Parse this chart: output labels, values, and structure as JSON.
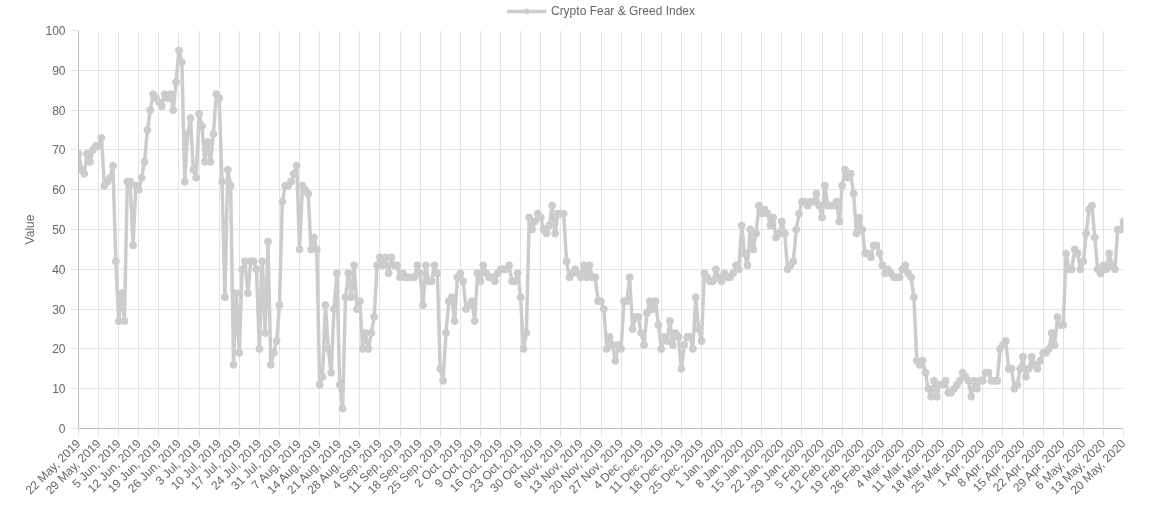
{
  "chart_data": {
    "type": "line",
    "ylabel": "Value",
    "legend": "top",
    "grid": true,
    "marker": "circle",
    "line_style": "solid",
    "xlim": [
      "2019-05-22",
      "2020-05-20"
    ],
    "ylim": [
      0,
      100
    ],
    "yticks": [
      0,
      10,
      20,
      30,
      40,
      50,
      60,
      70,
      80,
      90,
      100
    ],
    "xticks": [
      {
        "value": "2019-05-22",
        "label": "22 May, 2019"
      },
      {
        "value": "2019-05-29",
        "label": "29 May, 2019"
      },
      {
        "value": "2019-06-05",
        "label": "5 Jun, 2019"
      },
      {
        "value": "2019-06-12",
        "label": "12 Jun, 2019"
      },
      {
        "value": "2019-06-19",
        "label": "19 Jun, 2019"
      },
      {
        "value": "2019-06-26",
        "label": "26 Jun, 2019"
      },
      {
        "value": "2019-07-03",
        "label": "3 Jul, 2019"
      },
      {
        "value": "2019-07-10",
        "label": "10 Jul, 2019"
      },
      {
        "value": "2019-07-17",
        "label": "17 Jul, 2019"
      },
      {
        "value": "2019-07-24",
        "label": "24 Jul, 2019"
      },
      {
        "value": "2019-07-31",
        "label": "31 Jul, 2019"
      },
      {
        "value": "2019-08-07",
        "label": "7 Aug, 2019"
      },
      {
        "value": "2019-08-14",
        "label": "14 Aug, 2019"
      },
      {
        "value": "2019-08-21",
        "label": "21 Aug, 2019"
      },
      {
        "value": "2019-08-28",
        "label": "28 Aug, 2019"
      },
      {
        "value": "2019-09-04",
        "label": "4 Sep, 2019"
      },
      {
        "value": "2019-09-11",
        "label": "11 Sep, 2019"
      },
      {
        "value": "2019-09-18",
        "label": "18 Sep, 2019"
      },
      {
        "value": "2019-09-25",
        "label": "25 Sep, 2019"
      },
      {
        "value": "2019-10-02",
        "label": "2 Oct, 2019"
      },
      {
        "value": "2019-10-09",
        "label": "9 Oct, 2019"
      },
      {
        "value": "2019-10-16",
        "label": "16 Oct, 2019"
      },
      {
        "value": "2019-10-23",
        "label": "23 Oct, 2019"
      },
      {
        "value": "2019-10-30",
        "label": "30 Oct, 2019"
      },
      {
        "value": "2019-11-06",
        "label": "6 Nov, 2019"
      },
      {
        "value": "2019-11-13",
        "label": "13 Nov, 2019"
      },
      {
        "value": "2019-11-20",
        "label": "20 Nov, 2019"
      },
      {
        "value": "2019-11-27",
        "label": "27 Nov, 2019"
      },
      {
        "value": "2019-12-04",
        "label": "4 Dec, 2019"
      },
      {
        "value": "2019-12-11",
        "label": "11 Dec, 2019"
      },
      {
        "value": "2019-12-18",
        "label": "18 Dec, 2019"
      },
      {
        "value": "2019-12-25",
        "label": "25 Dec, 2019"
      },
      {
        "value": "2020-01-01",
        "label": "1 Jan, 2020"
      },
      {
        "value": "2020-01-08",
        "label": "8 Jan, 2020"
      },
      {
        "value": "2020-01-15",
        "label": "15 Jan, 2020"
      },
      {
        "value": "2020-01-22",
        "label": "22 Jan, 2020"
      },
      {
        "value": "2020-01-29",
        "label": "29 Jan, 2020"
      },
      {
        "value": "2020-02-05",
        "label": "5 Feb, 2020"
      },
      {
        "value": "2020-02-12",
        "label": "12 Feb, 2020"
      },
      {
        "value": "2020-02-19",
        "label": "19 Feb, 2020"
      },
      {
        "value": "2020-02-26",
        "label": "26 Feb, 2020"
      },
      {
        "value": "2020-03-04",
        "label": "4 Mar, 2020"
      },
      {
        "value": "2020-03-11",
        "label": "11 Mar, 2020"
      },
      {
        "value": "2020-03-18",
        "label": "18 Mar, 2020"
      },
      {
        "value": "2020-03-25",
        "label": "25 Mar, 2020"
      },
      {
        "value": "2020-04-01",
        "label": "1 Apr, 2020"
      },
      {
        "value": "2020-04-08",
        "label": "8 Apr, 2020"
      },
      {
        "value": "2020-04-15",
        "label": "15 Apr, 2020"
      },
      {
        "value": "2020-04-22",
        "label": "22 Apr, 2020"
      },
      {
        "value": "2020-04-29",
        "label": "29 Apr, 2020"
      },
      {
        "value": "2020-05-06",
        "label": "6 May, 2020"
      },
      {
        "value": "2020-05-13",
        "label": "13 May, 2020"
      },
      {
        "value": "2020-05-20",
        "label": "20 May, 2020"
      }
    ],
    "x": [
      "2019-05-22",
      "2019-05-23",
      "2019-05-24",
      "2019-05-25",
      "2019-05-26",
      "2019-05-27",
      "2019-05-28",
      "2019-05-29",
      "2019-05-30",
      "2019-05-31",
      "2019-06-01",
      "2019-06-02",
      "2019-06-03",
      "2019-06-04",
      "2019-06-05",
      "2019-06-06",
      "2019-06-07",
      "2019-06-08",
      "2019-06-09",
      "2019-06-10",
      "2019-06-11",
      "2019-06-12",
      "2019-06-13",
      "2019-06-14",
      "2019-06-15",
      "2019-06-16",
      "2019-06-17",
      "2019-06-18",
      "2019-06-19",
      "2019-06-20",
      "2019-06-21",
      "2019-06-22",
      "2019-06-23",
      "2019-06-24",
      "2019-06-25",
      "2019-06-26",
      "2019-06-27",
      "2019-06-28",
      "2019-06-29",
      "2019-06-30",
      "2019-07-01",
      "2019-07-02",
      "2019-07-03",
      "2019-07-04",
      "2019-07-05",
      "2019-07-06",
      "2019-07-07",
      "2019-07-08",
      "2019-07-09",
      "2019-07-10",
      "2019-07-11",
      "2019-07-12",
      "2019-07-13",
      "2019-07-14",
      "2019-07-15",
      "2019-07-16",
      "2019-07-17",
      "2019-07-18",
      "2019-07-19",
      "2019-07-20",
      "2019-07-21",
      "2019-07-22",
      "2019-07-23",
      "2019-07-24",
      "2019-07-25",
      "2019-07-26",
      "2019-07-27",
      "2019-07-28",
      "2019-07-29",
      "2019-07-30",
      "2019-07-31",
      "2019-08-01",
      "2019-08-02",
      "2019-08-03",
      "2019-08-04",
      "2019-08-05",
      "2019-08-06",
      "2019-08-07",
      "2019-08-08",
      "2019-08-09",
      "2019-08-10",
      "2019-08-11",
      "2019-08-12",
      "2019-08-13",
      "2019-08-14",
      "2019-08-15",
      "2019-08-16",
      "2019-08-17",
      "2019-08-18",
      "2019-08-19",
      "2019-08-20",
      "2019-08-21",
      "2019-08-22",
      "2019-08-23",
      "2019-08-24",
      "2019-08-25",
      "2019-08-26",
      "2019-08-27",
      "2019-08-28",
      "2019-08-29",
      "2019-08-30",
      "2019-08-31",
      "2019-09-01",
      "2019-09-02",
      "2019-09-03",
      "2019-09-04",
      "2019-09-05",
      "2019-09-06",
      "2019-09-07",
      "2019-09-08",
      "2019-09-09",
      "2019-09-10",
      "2019-09-11",
      "2019-09-12",
      "2019-09-13",
      "2019-09-14",
      "2019-09-15",
      "2019-09-16",
      "2019-09-17",
      "2019-09-18",
      "2019-09-19",
      "2019-09-20",
      "2019-09-21",
      "2019-09-22",
      "2019-09-23",
      "2019-09-24",
      "2019-09-25",
      "2019-09-26",
      "2019-09-27",
      "2019-09-28",
      "2019-09-29",
      "2019-09-30",
      "2019-10-01",
      "2019-10-02",
      "2019-10-03",
      "2019-10-04",
      "2019-10-05",
      "2019-10-06",
      "2019-10-07",
      "2019-10-08",
      "2019-10-09",
      "2019-10-10",
      "2019-10-11",
      "2019-10-12",
      "2019-10-13",
      "2019-10-14",
      "2019-10-15",
      "2019-10-16",
      "2019-10-17",
      "2019-10-18",
      "2019-10-19",
      "2019-10-20",
      "2019-10-21",
      "2019-10-22",
      "2019-10-23",
      "2019-10-24",
      "2019-10-25",
      "2019-10-26",
      "2019-10-27",
      "2019-10-28",
      "2019-10-29",
      "2019-10-30",
      "2019-10-31",
      "2019-11-01",
      "2019-11-02",
      "2019-11-03",
      "2019-11-04",
      "2019-11-05",
      "2019-11-06",
      "2019-11-07",
      "2019-11-08",
      "2019-11-09",
      "2019-11-10",
      "2019-11-11",
      "2019-11-12",
      "2019-11-13",
      "2019-11-14",
      "2019-11-15",
      "2019-11-16",
      "2019-11-17",
      "2019-11-18",
      "2019-11-19",
      "2019-11-20",
      "2019-11-21",
      "2019-11-22",
      "2019-11-23",
      "2019-11-24",
      "2019-11-25",
      "2019-11-26",
      "2019-11-27",
      "2019-11-28",
      "2019-11-29",
      "2019-11-30",
      "2019-12-01",
      "2019-12-02",
      "2019-12-03",
      "2019-12-04",
      "2019-12-05",
      "2019-12-06",
      "2019-12-07",
      "2019-12-08",
      "2019-12-09",
      "2019-12-10",
      "2019-12-11",
      "2019-12-12",
      "2019-12-13",
      "2019-12-14",
      "2019-12-15",
      "2019-12-16",
      "2019-12-17",
      "2019-12-18",
      "2019-12-19",
      "2019-12-20",
      "2019-12-21",
      "2019-12-22",
      "2019-12-23",
      "2019-12-24",
      "2019-12-25",
      "2019-12-26",
      "2019-12-27",
      "2019-12-28",
      "2019-12-29",
      "2019-12-30",
      "2019-12-31",
      "2020-01-01",
      "2020-01-02",
      "2020-01-03",
      "2020-01-04",
      "2020-01-05",
      "2020-01-06",
      "2020-01-07",
      "2020-01-08",
      "2020-01-09",
      "2020-01-10",
      "2020-01-11",
      "2020-01-12",
      "2020-01-13",
      "2020-01-14",
      "2020-01-15",
      "2020-01-16",
      "2020-01-17",
      "2020-01-18",
      "2020-01-19",
      "2020-01-20",
      "2020-01-21",
      "2020-01-22",
      "2020-01-23",
      "2020-01-24",
      "2020-01-25",
      "2020-01-26",
      "2020-01-27",
      "2020-01-28",
      "2020-01-29",
      "2020-01-30",
      "2020-01-31",
      "2020-02-01",
      "2020-02-02",
      "2020-02-03",
      "2020-02-04",
      "2020-02-05",
      "2020-02-06",
      "2020-02-07",
      "2020-02-08",
      "2020-02-09",
      "2020-02-10",
      "2020-02-11",
      "2020-02-12",
      "2020-02-13",
      "2020-02-14",
      "2020-02-15",
      "2020-02-16",
      "2020-02-17",
      "2020-02-18",
      "2020-02-19",
      "2020-02-20",
      "2020-02-21",
      "2020-02-22",
      "2020-02-23",
      "2020-02-24",
      "2020-02-25",
      "2020-02-26",
      "2020-02-27",
      "2020-02-28",
      "2020-02-29",
      "2020-03-01",
      "2020-03-02",
      "2020-03-03",
      "2020-03-04",
      "2020-03-05",
      "2020-03-06",
      "2020-03-07",
      "2020-03-08",
      "2020-03-09",
      "2020-03-10",
      "2020-03-11",
      "2020-03-12",
      "2020-03-13",
      "2020-03-14",
      "2020-03-15",
      "2020-03-16",
      "2020-03-17",
      "2020-03-18",
      "2020-03-19",
      "2020-03-20",
      "2020-03-21",
      "2020-03-22",
      "2020-03-23",
      "2020-03-24",
      "2020-03-25",
      "2020-03-26",
      "2020-03-27",
      "2020-03-28",
      "2020-03-29",
      "2020-03-30",
      "2020-03-31",
      "2020-04-01",
      "2020-04-02",
      "2020-04-03",
      "2020-04-04",
      "2020-04-05",
      "2020-04-06",
      "2020-04-07",
      "2020-04-08",
      "2020-04-09",
      "2020-04-10",
      "2020-04-11",
      "2020-04-12",
      "2020-04-13",
      "2020-04-14",
      "2020-04-15",
      "2020-04-16",
      "2020-04-17",
      "2020-04-18",
      "2020-04-19",
      "2020-04-20",
      "2020-04-21",
      "2020-04-22",
      "2020-04-23",
      "2020-04-24",
      "2020-04-25",
      "2020-04-26",
      "2020-04-27",
      "2020-04-28",
      "2020-04-29",
      "2020-04-30",
      "2020-05-01",
      "2020-05-02",
      "2020-05-03",
      "2020-05-04",
      "2020-05-05",
      "2020-05-06",
      "2020-05-07",
      "2020-05-08",
      "2020-05-09",
      "2020-05-10",
      "2020-05-11",
      "2020-05-12",
      "2020-05-13",
      "2020-05-14",
      "2020-05-15",
      "2020-05-16",
      "2020-05-17",
      "2020-05-18",
      "2020-05-19",
      "2020-05-20"
    ],
    "series": [
      {
        "name": "Crypto Fear & Greed Index",
        "color": "#cccccc",
        "values": [
          69,
          65,
          64,
          69,
          67,
          70,
          71,
          71,
          73,
          61,
          62,
          63,
          66,
          42,
          27,
          34,
          27,
          62,
          62,
          46,
          61,
          60,
          63,
          67,
          75,
          80,
          84,
          83,
          82,
          81,
          84,
          83,
          84,
          80,
          87,
          95,
          92,
          62,
          74,
          78,
          65,
          63,
          79,
          76,
          67,
          72,
          67,
          74,
          84,
          83,
          62,
          33,
          65,
          61,
          16,
          34,
          19,
          40,
          42,
          34,
          42,
          42,
          40,
          20,
          42,
          24,
          47,
          16,
          19,
          22,
          31,
          57,
          61,
          61,
          62,
          64,
          66,
          45,
          61,
          60,
          59,
          45,
          48,
          45,
          11,
          13,
          31,
          20,
          14,
          30,
          39,
          11,
          5,
          33,
          39,
          33,
          41,
          30,
          32,
          20,
          24,
          20,
          24,
          28,
          41,
          43,
          41,
          43,
          39,
          43,
          41,
          41,
          38,
          39,
          38,
          38,
          38,
          38,
          41,
          39,
          31,
          41,
          37,
          37,
          41,
          39,
          15,
          12,
          24,
          32,
          33,
          27,
          38,
          39,
          37,
          30,
          31,
          32,
          27,
          39,
          37,
          41,
          39,
          38,
          38,
          37,
          39,
          40,
          40,
          40,
          41,
          37,
          37,
          39,
          33,
          20,
          24,
          53,
          50,
          52,
          54,
          53,
          50,
          49,
          51,
          56,
          49,
          54,
          54,
          54,
          42,
          38,
          39,
          40,
          39,
          38,
          41,
          38,
          41,
          38,
          38,
          32,
          32,
          30,
          20,
          23,
          21,
          17,
          21,
          20,
          32,
          32,
          38,
          25,
          28,
          28,
          24,
          21,
          29,
          32,
          30,
          32,
          26,
          20,
          23,
          22,
          27,
          21,
          24,
          23,
          15,
          21,
          23,
          23,
          20,
          33,
          25,
          22,
          39,
          38,
          37,
          37,
          40,
          38,
          37,
          39,
          38,
          38,
          39,
          41,
          40,
          51,
          44,
          41,
          50,
          45,
          49,
          56,
          54,
          55,
          54,
          51,
          53,
          48,
          49,
          52,
          49,
          40,
          41,
          42,
          50,
          54,
          57,
          57,
          56,
          57,
          57,
          59,
          56,
          53,
          61,
          56,
          56,
          56,
          57,
          52,
          61,
          65,
          63,
          64,
          59,
          49,
          53,
          50,
          44,
          44,
          43,
          46,
          46,
          44,
          41,
          39,
          40,
          39,
          38,
          38,
          38,
          40,
          41,
          39,
          38,
          33,
          17,
          16,
          17,
          14,
          10,
          8,
          12,
          8,
          11,
          11,
          12,
          9,
          9,
          10,
          11,
          12,
          14,
          13,
          12,
          8,
          12,
          10,
          12,
          12,
          14,
          14,
          12,
          12,
          12,
          20,
          21,
          22,
          15,
          15,
          10,
          11,
          15,
          18,
          13,
          15,
          18,
          16,
          15,
          17,
          19,
          19,
          20,
          24,
          21,
          28,
          26,
          26,
          44,
          40,
          40,
          45,
          44,
          40,
          42,
          49,
          55,
          56,
          48,
          40,
          39,
          41,
          40,
          44,
          41,
          40,
          50,
          50,
          52
        ]
      }
    ]
  }
}
